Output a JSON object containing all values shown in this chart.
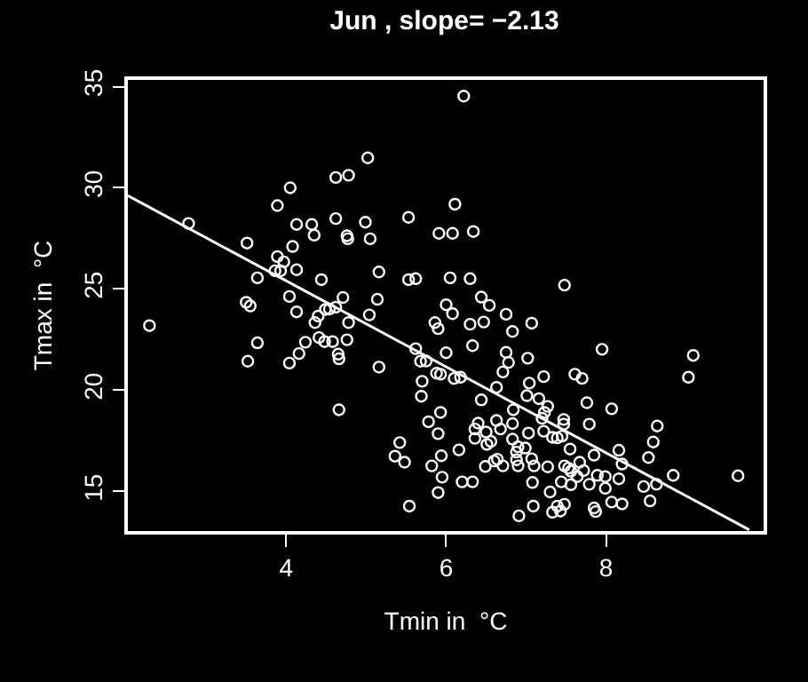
{
  "chart_data": {
    "type": "scatter",
    "title": "Jun , slope= −2.13",
    "xlabel": "Tmin in  °C",
    "ylabel": "Tmax in  °C",
    "xlim": [
      2.02,
      9.97
    ],
    "ylim": [
      13.04,
      35.33
    ],
    "xticks": [
      4,
      6,
      8
    ],
    "yticks": [
      15,
      20,
      25,
      30,
      35
    ],
    "grid": false,
    "series": [
      {
        "marker": "circle",
        "color": "#ffffff",
        "x": [
          2.29,
          2.78,
          3.51,
          3.5,
          3.55,
          3.64,
          3.64,
          3.52,
          3.89,
          4.05,
          4.13,
          4.08,
          3.89,
          3.97,
          3.93,
          3.86,
          4.13,
          4.04,
          4.13,
          4.16,
          4.04,
          4.24,
          4.32,
          4.35,
          4.44,
          4.36,
          4.4,
          4.49,
          4.54,
          4.41,
          4.48,
          4.58,
          4.62,
          4.78,
          4.62,
          4.76,
          4.77,
          4.62,
          4.71,
          4.78,
          4.76,
          4.65,
          4.66,
          4.66,
          5.02,
          4.99,
          5.05,
          5.16,
          5.14,
          5.04,
          5.16,
          5.53,
          5.53,
          5.62,
          5.62,
          5.68,
          5.7,
          5.69,
          5.42,
          5.36,
          5.48,
          5.54,
          5.75,
          6.22,
          6.11,
          5.91,
          6.08,
          6.34,
          6.05,
          6.3,
          7.48,
          6.44,
          6.54,
          6.0,
          6.08,
          6.75,
          5.86,
          5.9,
          6.3,
          6.47,
          6.83,
          7.07,
          6.33,
          6.0,
          6.75,
          6.78,
          7.02,
          7.95,
          9.09,
          9.03,
          5.88,
          5.93,
          6.1,
          6.18,
          6.71,
          7.22,
          7.61,
          7.7,
          6.63,
          7.04,
          6.44,
          7.01,
          7.16,
          7.27,
          7.76,
          8.07,
          6.84,
          5.93,
          5.78,
          6.4,
          6.63,
          6.83,
          7.23,
          7.2,
          7.47,
          7.47,
          7.79,
          8.64,
          5.9,
          6.36,
          6.5,
          6.68,
          7.03,
          7.22,
          7.33,
          7.39,
          6.36,
          6.56,
          6.83,
          6.9,
          6.99,
          6.88,
          6.51,
          7.45,
          8.59,
          8.16,
          7.55,
          7.85,
          8.53,
          6.16,
          5.94,
          5.82,
          6.49,
          6.6,
          6.64,
          6.71,
          6.88,
          6.9,
          7.07,
          7.1,
          7.27,
          7.48,
          7.53,
          7.67,
          7.72,
          7.56,
          7.64,
          7.89,
          7.99,
          8.16,
          8.2,
          8.84,
          9.65,
          5.95,
          6.2,
          6.33,
          7.08,
          7.44,
          7.56,
          7.79,
          7.99,
          8.47,
          8.63,
          5.9,
          7.3,
          7.09,
          7.39,
          7.48,
          7.33,
          7.43,
          7.85,
          7.87,
          8.07,
          8.2,
          8.55,
          6.91
        ],
        "values": [
          23.19,
          28.24,
          27.27,
          24.34,
          24.16,
          25.55,
          22.34,
          21.43,
          29.12,
          30.0,
          28.19,
          27.1,
          26.6,
          26.34,
          25.9,
          25.9,
          25.95,
          24.63,
          23.87,
          21.81,
          21.34,
          22.37,
          28.19,
          27.66,
          25.46,
          23.34,
          23.66,
          23.99,
          24.01,
          22.6,
          22.4,
          22.4,
          30.51,
          30.62,
          28.48,
          27.63,
          27.48,
          24.1,
          24.58,
          23.34,
          22.49,
          21.78,
          21.55,
          19.03,
          31.48,
          28.3,
          27.48,
          25.84,
          24.49,
          23.72,
          21.14,
          28.54,
          25.46,
          25.51,
          22.05,
          21.43,
          20.44,
          19.7,
          17.41,
          16.74,
          16.44,
          14.27,
          21.44,
          34.53,
          29.19,
          27.75,
          27.75,
          27.84,
          25.55,
          25.51,
          25.19,
          24.6,
          24.19,
          24.22,
          23.78,
          23.75,
          23.34,
          23.04,
          23.26,
          23.37,
          22.9,
          23.31,
          22.2,
          21.85,
          21.87,
          21.37,
          21.58,
          22.02,
          21.72,
          20.64,
          20.84,
          20.79,
          20.58,
          20.64,
          20.9,
          20.67,
          20.79,
          20.58,
          20.14,
          20.35,
          19.52,
          19.73,
          19.58,
          19.2,
          19.38,
          19.08,
          19.03,
          18.9,
          18.44,
          18.37,
          18.5,
          18.35,
          18.9,
          18.61,
          18.55,
          18.32,
          18.32,
          18.23,
          17.85,
          18.08,
          17.93,
          18.08,
          17.88,
          17.97,
          17.67,
          17.64,
          17.62,
          17.47,
          17.58,
          17.2,
          17.14,
          16.94,
          17.32,
          17.73,
          17.44,
          17.03,
          17.09,
          16.79,
          16.67,
          17.05,
          16.76,
          16.26,
          16.23,
          16.5,
          16.59,
          16.26,
          16.56,
          16.26,
          16.61,
          16.26,
          16.21,
          16.26,
          16.15,
          16.44,
          16.03,
          16.0,
          15.73,
          15.79,
          15.73,
          15.62,
          16.35,
          15.79,
          15.77,
          15.7,
          15.47,
          15.47,
          15.44,
          15.47,
          15.33,
          15.35,
          15.15,
          15.24,
          15.35,
          14.94,
          14.97,
          14.27,
          14.27,
          14.36,
          13.97,
          14.03,
          14.18,
          14.0,
          14.47,
          14.38,
          14.53,
          13.79
        ]
      },
      {
        "type": "line",
        "marker": "none",
        "line_style": "solid",
        "color": "#ffffff",
        "x": [
          2.02,
          9.79
        ],
        "values": [
          29.61,
          13.1
        ]
      }
    ]
  }
}
